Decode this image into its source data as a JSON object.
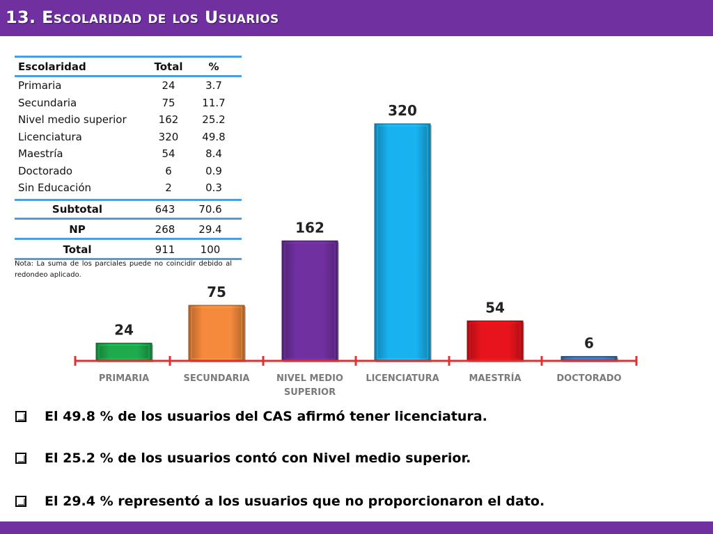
{
  "slide": {
    "title": "13. Escolaridad de los Usuarios"
  },
  "table": {
    "headers": [
      "Escolaridad",
      "Total",
      "%"
    ],
    "rows": [
      [
        "Primaria",
        "24",
        "3.7"
      ],
      [
        "Secundaria",
        "75",
        "11.7"
      ],
      [
        "Nivel medio superior",
        "162",
        "25.2"
      ],
      [
        "Licenciatura",
        "320",
        "49.8"
      ],
      [
        "Maestría",
        "54",
        "8.4"
      ],
      [
        "Doctorado",
        "6",
        "0.9"
      ],
      [
        "Sin Educación",
        "2",
        "0.3"
      ]
    ],
    "subtotal": [
      "Subtotal",
      "643",
      "70.6"
    ],
    "np": [
      "NP",
      "268",
      "29.4"
    ],
    "total": [
      "Total",
      "911",
      "100"
    ]
  },
  "note": "Nota: La suma de los parciales puede no coincidir debido al redondeo aplicado.",
  "chart_data": {
    "type": "bar",
    "categories": [
      "PRIMARIA",
      "SECUNDARIA",
      "NIVEL MEDIO SUPERIOR",
      "LICENCIATURA",
      "MAESTRÍA",
      "DOCTORADO"
    ],
    "category_lines": [
      [
        "PRIMARIA"
      ],
      [
        "SECUNDARIA"
      ],
      [
        "NIVEL MEDIO",
        "SUPERIOR"
      ],
      [
        "LICENCIATURA"
      ],
      [
        "MAESTRÍA"
      ],
      [
        "DOCTORADO"
      ]
    ],
    "values": [
      24,
      75,
      162,
      320,
      54,
      6
    ],
    "data_labels": [
      "24",
      "75",
      "162",
      "320",
      "54",
      "6"
    ],
    "colors": [
      "#1faa4e",
      "#f58a3c",
      "#7030a0",
      "#19b2f0",
      "#e8141c",
      "#3d73b8"
    ],
    "axis_color": "#e03030",
    "ylim": [
      0,
      320
    ],
    "grid": false,
    "legend": "none"
  },
  "bullets": [
    "El 49.8 % de los usuarios del CAS afirmó tener licenciatura.",
    "El 25.2 % de los usuarios contó con Nivel medio superior.",
    "El 29.4 % representó a los usuarios que no proporcionaron el dato."
  ],
  "colors": {
    "header": "#7030a0",
    "table_rule": "#4a9fe3"
  }
}
